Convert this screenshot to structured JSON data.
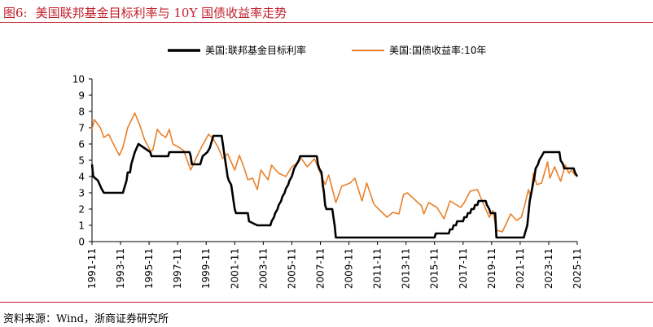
{
  "figure": {
    "label": "图6:",
    "title": "美国联邦基金目标利率与 10Y 国债收益率走势",
    "source": "资料来源：Wind，浙商证券研究所",
    "accent_color": "#c0202a"
  },
  "chart_data": {
    "type": "line",
    "ylim": [
      0,
      10
    ],
    "y_ticks": [
      "0",
      "1",
      "2",
      "3",
      "4",
      "5",
      "6",
      "7",
      "8",
      "9",
      "10"
    ],
    "x_range": [
      "1991-11",
      "2025-11"
    ],
    "x_ticks": [
      "1991-11",
      "1993-11",
      "1995-11",
      "1997-11",
      "1999-11",
      "2001-11",
      "2003-11",
      "2005-11",
      "2007-11",
      "2009-11",
      "2011-11",
      "2013-11",
      "2015-11",
      "2017-11",
      "2019-11",
      "2021-11",
      "2023-11",
      "2025-11"
    ],
    "grid": false,
    "legend_position": "top",
    "series": [
      {
        "name": "美国:联邦基金目标利率",
        "color": "#000000",
        "points": [
          [
            "1991-11",
            4.75
          ],
          [
            "1991-12",
            4.0
          ],
          [
            "1992-04",
            3.75
          ],
          [
            "1992-07",
            3.25
          ],
          [
            "1992-09",
            3.0
          ],
          [
            "1994-01",
            3.0
          ],
          [
            "1994-02",
            3.25
          ],
          [
            "1994-03",
            3.5
          ],
          [
            "1994-04",
            3.75
          ],
          [
            "1994-05",
            4.25
          ],
          [
            "1994-07",
            4.25
          ],
          [
            "1994-08",
            4.75
          ],
          [
            "1994-11",
            5.5
          ],
          [
            "1995-02",
            6.0
          ],
          [
            "1995-07",
            5.75
          ],
          [
            "1995-12",
            5.5
          ],
          [
            "1996-01",
            5.25
          ],
          [
            "1997-03",
            5.25
          ],
          [
            "1997-04",
            5.5
          ],
          [
            "1998-09",
            5.5
          ],
          [
            "1998-10",
            5.25
          ],
          [
            "1998-11",
            4.75
          ],
          [
            "1999-06",
            4.75
          ],
          [
            "1999-07",
            5.0
          ],
          [
            "1999-08",
            5.25
          ],
          [
            "1999-12",
            5.5
          ],
          [
            "2000-02",
            5.75
          ],
          [
            "2000-03",
            6.0
          ],
          [
            "2000-05",
            6.5
          ],
          [
            "2000-12",
            6.5
          ],
          [
            "2001-01",
            6.0
          ],
          [
            "2001-02",
            5.5
          ],
          [
            "2001-03",
            5.0
          ],
          [
            "2001-04",
            4.5
          ],
          [
            "2001-05",
            4.0
          ],
          [
            "2001-06",
            3.75
          ],
          [
            "2001-08",
            3.5
          ],
          [
            "2001-09",
            3.0
          ],
          [
            "2001-10",
            2.5
          ],
          [
            "2001-11",
            2.0
          ],
          [
            "2001-12",
            1.75
          ],
          [
            "2002-10",
            1.75
          ],
          [
            "2002-11",
            1.25
          ],
          [
            "2003-06",
            1.0
          ],
          [
            "2004-05",
            1.0
          ],
          [
            "2004-06",
            1.25
          ],
          [
            "2004-08",
            1.5
          ],
          [
            "2004-09",
            1.75
          ],
          [
            "2004-11",
            2.0
          ],
          [
            "2004-12",
            2.25
          ],
          [
            "2005-02",
            2.5
          ],
          [
            "2005-03",
            2.75
          ],
          [
            "2005-05",
            3.0
          ],
          [
            "2005-06",
            3.25
          ],
          [
            "2005-08",
            3.5
          ],
          [
            "2005-09",
            3.75
          ],
          [
            "2005-11",
            4.0
          ],
          [
            "2005-12",
            4.25
          ],
          [
            "2006-01",
            4.5
          ],
          [
            "2006-03",
            4.75
          ],
          [
            "2006-05",
            5.0
          ],
          [
            "2006-06",
            5.25
          ],
          [
            "2007-08",
            5.25
          ],
          [
            "2007-09",
            4.75
          ],
          [
            "2007-10",
            4.5
          ],
          [
            "2007-12",
            4.25
          ],
          [
            "2008-01",
            3.5
          ],
          [
            "2008-02",
            3.0
          ],
          [
            "2008-03",
            2.25
          ],
          [
            "2008-04",
            2.0
          ],
          [
            "2008-09",
            2.0
          ],
          [
            "2008-10",
            1.5
          ],
          [
            "2008-11",
            1.0
          ],
          [
            "2008-12",
            0.25
          ],
          [
            "2015-11",
            0.25
          ],
          [
            "2015-12",
            0.5
          ],
          [
            "2016-11",
            0.5
          ],
          [
            "2016-12",
            0.75
          ],
          [
            "2017-02",
            0.75
          ],
          [
            "2017-03",
            1.0
          ],
          [
            "2017-05",
            1.0
          ],
          [
            "2017-06",
            1.25
          ],
          [
            "2017-11",
            1.25
          ],
          [
            "2017-12",
            1.5
          ],
          [
            "2018-02",
            1.5
          ],
          [
            "2018-03",
            1.75
          ],
          [
            "2018-05",
            1.75
          ],
          [
            "2018-06",
            2.0
          ],
          [
            "2018-08",
            2.0
          ],
          [
            "2018-09",
            2.25
          ],
          [
            "2018-11",
            2.25
          ],
          [
            "2018-12",
            2.5
          ],
          [
            "2019-06",
            2.5
          ],
          [
            "2019-07",
            2.25
          ],
          [
            "2019-09",
            2.0
          ],
          [
            "2019-10",
            1.75
          ],
          [
            "2020-02",
            1.75
          ],
          [
            "2020-03",
            0.25
          ],
          [
            "2022-02",
            0.25
          ],
          [
            "2022-03",
            0.5
          ],
          [
            "2022-05",
            1.0
          ],
          [
            "2022-06",
            1.75
          ],
          [
            "2022-07",
            2.5
          ],
          [
            "2022-09",
            3.25
          ],
          [
            "2022-11",
            4.0
          ],
          [
            "2022-12",
            4.5
          ],
          [
            "2023-02",
            4.75
          ],
          [
            "2023-03",
            5.0
          ],
          [
            "2023-05",
            5.25
          ],
          [
            "2023-07",
            5.5
          ],
          [
            "2024-08",
            5.5
          ],
          [
            "2024-09",
            5.0
          ],
          [
            "2024-11",
            4.75
          ],
          [
            "2024-12",
            4.5
          ],
          [
            "2025-08",
            4.5
          ],
          [
            "2025-09",
            4.25
          ],
          [
            "2025-11",
            4.0
          ]
        ]
      },
      {
        "name": "美国:国债收益率:10年",
        "color": "#e8802a",
        "points": [
          [
            "1991-11",
            6.9
          ],
          [
            "1992-01",
            7.5
          ],
          [
            "1992-03",
            7.3
          ],
          [
            "1992-06",
            7.0
          ],
          [
            "1992-09",
            6.4
          ],
          [
            "1993-01",
            6.6
          ],
          [
            "1993-05",
            6.0
          ],
          [
            "1993-10",
            5.3
          ],
          [
            "1994-01",
            5.8
          ],
          [
            "1994-05",
            7.0
          ],
          [
            "1994-11",
            7.9
          ],
          [
            "1995-03",
            7.2
          ],
          [
            "1995-07",
            6.3
          ],
          [
            "1995-12",
            5.6
          ],
          [
            "1996-02",
            5.6
          ],
          [
            "1996-06",
            6.9
          ],
          [
            "1996-09",
            6.6
          ],
          [
            "1997-01",
            6.4
          ],
          [
            "1997-04",
            6.9
          ],
          [
            "1997-07",
            6.0
          ],
          [
            "1997-12",
            5.8
          ],
          [
            "1998-04",
            5.6
          ],
          [
            "1998-10",
            4.4
          ],
          [
            "1999-03",
            5.2
          ],
          [
            "1999-07",
            5.8
          ],
          [
            "2000-01",
            6.6
          ],
          [
            "2000-05",
            6.3
          ],
          [
            "2000-09",
            5.8
          ],
          [
            "2001-01",
            5.1
          ],
          [
            "2001-05",
            5.4
          ],
          [
            "2001-11",
            4.4
          ],
          [
            "2002-03",
            5.3
          ],
          [
            "2002-07",
            4.5
          ],
          [
            "2002-10",
            3.8
          ],
          [
            "2003-02",
            3.9
          ],
          [
            "2003-06",
            3.2
          ],
          [
            "2003-09",
            4.4
          ],
          [
            "2004-03",
            3.8
          ],
          [
            "2004-06",
            4.7
          ],
          [
            "2004-12",
            4.2
          ],
          [
            "2005-06",
            4.0
          ],
          [
            "2005-11",
            4.6
          ],
          [
            "2006-03",
            4.8
          ],
          [
            "2006-06",
            5.2
          ],
          [
            "2006-12",
            4.6
          ],
          [
            "2007-06",
            5.1
          ],
          [
            "2007-11",
            4.2
          ],
          [
            "2008-03",
            3.5
          ],
          [
            "2008-06",
            4.1
          ],
          [
            "2008-12",
            2.4
          ],
          [
            "2009-05",
            3.4
          ],
          [
            "2009-12",
            3.6
          ],
          [
            "2010-04",
            3.9
          ],
          [
            "2010-10",
            2.5
          ],
          [
            "2011-02",
            3.6
          ],
          [
            "2011-08",
            2.3
          ],
          [
            "2011-12",
            2.0
          ],
          [
            "2012-07",
            1.5
          ],
          [
            "2012-12",
            1.8
          ],
          [
            "2013-05",
            1.7
          ],
          [
            "2013-09",
            2.9
          ],
          [
            "2013-12",
            3.0
          ],
          [
            "2014-06",
            2.6
          ],
          [
            "2014-12",
            2.2
          ],
          [
            "2015-02",
            1.7
          ],
          [
            "2015-06",
            2.4
          ],
          [
            "2016-01",
            2.1
          ],
          [
            "2016-07",
            1.4
          ],
          [
            "2016-12",
            2.5
          ],
          [
            "2017-09",
            2.1
          ],
          [
            "2017-12",
            2.4
          ],
          [
            "2018-05",
            3.1
          ],
          [
            "2018-11",
            3.2
          ],
          [
            "2019-03",
            2.5
          ],
          [
            "2019-09",
            1.5
          ],
          [
            "2019-12",
            1.9
          ],
          [
            "2020-03",
            0.7
          ],
          [
            "2020-08",
            0.6
          ],
          [
            "2021-03",
            1.7
          ],
          [
            "2021-08",
            1.3
          ],
          [
            "2021-12",
            1.5
          ],
          [
            "2022-03",
            2.3
          ],
          [
            "2022-06",
            3.2
          ],
          [
            "2022-08",
            2.7
          ],
          [
            "2022-10",
            4.2
          ],
          [
            "2023-01",
            3.5
          ],
          [
            "2023-05",
            3.6
          ],
          [
            "2023-10",
            4.9
          ],
          [
            "2023-12",
            3.9
          ],
          [
            "2024-04",
            4.6
          ],
          [
            "2024-09",
            3.7
          ],
          [
            "2025-01",
            4.7
          ],
          [
            "2025-04",
            4.2
          ],
          [
            "2025-06",
            4.4
          ],
          [
            "2025-09",
            4.1
          ],
          [
            "2025-11",
            4.1
          ]
        ]
      }
    ]
  }
}
